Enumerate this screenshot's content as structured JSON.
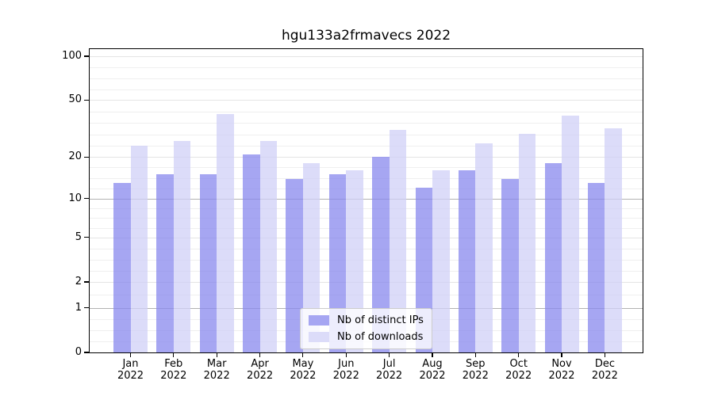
{
  "title": "hgu133a2frmavecs 2022",
  "chart_data": {
    "type": "bar",
    "title": "hgu133a2frmavecs 2022",
    "categories": [
      "Jan 2022",
      "Feb 2022",
      "Mar 2022",
      "Apr 2022",
      "May 2022",
      "Jun 2022",
      "Jul 2022",
      "Aug 2022",
      "Sep 2022",
      "Oct 2022",
      "Nov 2022",
      "Dec 2022"
    ],
    "series": [
      {
        "name": "Nb of distinct IPs",
        "color": "#a6a6f2",
        "values": [
          13,
          15,
          15,
          21,
          14,
          15,
          20,
          12,
          16,
          14,
          18,
          13
        ]
      },
      {
        "name": "Nb of downloads",
        "color": "#dcdcf9",
        "values": [
          24,
          26,
          40,
          26,
          18,
          16,
          31,
          16,
          25,
          29,
          39,
          32
        ]
      }
    ],
    "xlabel": "",
    "ylabel": "",
    "y_ticks": [
      0,
      1,
      2,
      5,
      10,
      20,
      50,
      100
    ],
    "y_scale": "log10(value+1)",
    "ylim": [
      0,
      113
    ],
    "grid": true,
    "legend_position": "bottom-center"
  }
}
